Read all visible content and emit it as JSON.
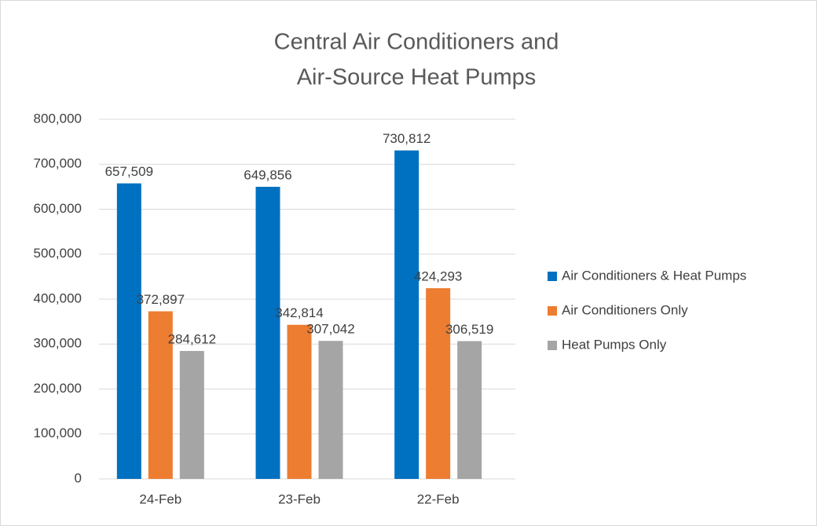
{
  "chart_data": {
    "type": "bar",
    "title": [
      "Central Air Conditioners and",
      "Air-Source Heat Pumps"
    ],
    "categories": [
      "24-Feb",
      "23-Feb",
      "22-Feb"
    ],
    "series": [
      {
        "name": "Air Conditioners & Heat Pumps",
        "color": "#0070c0",
        "values": [
          657509,
          649856,
          730812
        ],
        "value_labels": [
          "657,509",
          "649,856",
          "730,812"
        ]
      },
      {
        "name": "Air Conditioners Only",
        "color": "#ed7d31",
        "values": [
          372897,
          342814,
          424293
        ],
        "value_labels": [
          "372,897",
          "342,814",
          "424,293"
        ]
      },
      {
        "name": "Heat Pumps Only",
        "color": "#a5a5a5",
        "values": [
          284612,
          307042,
          306519
        ],
        "value_labels": [
          "284,612",
          "307,042",
          "306,519"
        ]
      }
    ],
    "ylim": [
      0,
      800000
    ],
    "yticks": [
      0,
      {
        "value": 100000,
        "label": "100,000"
      },
      {
        "value": 200000,
        "label": "200,000"
      },
      {
        "value": 300000,
        "label": "300,000"
      },
      {
        "value": 400000,
        "label": "400,000"
      },
      {
        "value": 500000,
        "label": "500,000"
      },
      {
        "value": 600000,
        "label": "600,000"
      },
      {
        "value": 700000,
        "label": "700,000"
      },
      {
        "value": 800000,
        "label": "800,000"
      }
    ],
    "grid": true,
    "legend": "right"
  }
}
